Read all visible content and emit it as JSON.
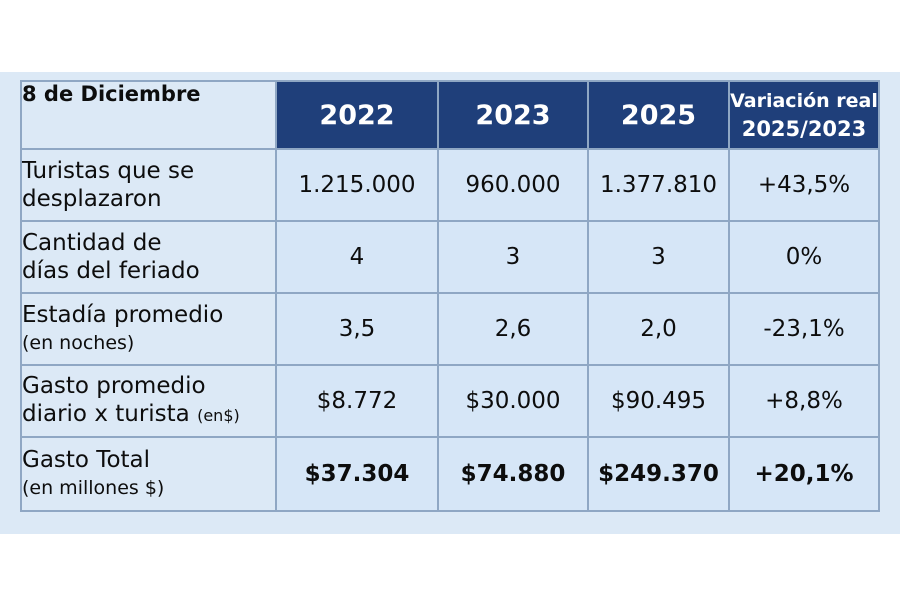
{
  "table": {
    "corner_label": "8 de Diciembre",
    "columns": [
      "2022",
      "2023",
      "2025"
    ],
    "variation_header": {
      "line1": "Variación real",
      "line2": "2025/2023"
    },
    "rows": [
      {
        "label_line1": "Turistas que se",
        "label_line2": "desplazaron",
        "label_unit": "",
        "values": [
          "1.215.000",
          "960.000",
          "1.377.810"
        ],
        "variation": "+43,5%"
      },
      {
        "label_line1": "Cantidad de",
        "label_line2": "días del feriado",
        "label_unit": "",
        "values": [
          "4",
          "3",
          "3"
        ],
        "variation": "0%"
      },
      {
        "label_line1": "Estadía promedio",
        "label_line2": "(en noches)",
        "label_unit": "",
        "values": [
          "3,5",
          "2,6",
          "2,0"
        ],
        "variation": "-23,1%"
      },
      {
        "label_line1": "Gasto promedio",
        "label_line2": "diario x turista",
        "label_unit": "(en$)",
        "values": [
          "$8.772",
          "$30.000",
          "$90.495"
        ],
        "variation": "+8,8%"
      },
      {
        "label_line1": "Gasto Total",
        "label_line2": "(en millones $)",
        "label_unit": "",
        "values": [
          "$37.304",
          "$74.880",
          "$249.370"
        ],
        "variation": "+20,1%"
      }
    ]
  },
  "colors": {
    "header_background": "#1f3f7a",
    "header_text": "#ffffff",
    "body_background": "#dce9f6",
    "grid_lines": "#8fa7c4"
  }
}
